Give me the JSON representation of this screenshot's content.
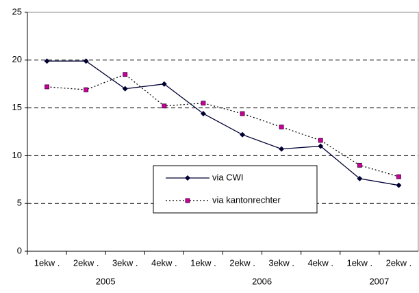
{
  "chart_data": {
    "type": "line",
    "categories": [
      "1ekw .",
      "2ekw .",
      "3ekw .",
      "4ekw .",
      "1ekw .",
      "2ekw .",
      "3ekw .",
      "4ekw .",
      "1ekw .",
      "2ekw ."
    ],
    "x_groups": [
      {
        "label": "2005",
        "count": 4
      },
      {
        "label": "2006",
        "count": 4
      },
      {
        "label": "2007",
        "count": 2
      }
    ],
    "series": [
      {
        "name": "via CWI",
        "color": "#000033",
        "marker_color": "#000033",
        "marker": "diamond",
        "dash": "solid",
        "values": [
          19.9,
          19.9,
          17.0,
          17.5,
          14.4,
          12.2,
          10.7,
          11.0,
          7.6,
          6.9
        ]
      },
      {
        "name": "via kantonrechter",
        "color": "#000000",
        "marker_color": "#cc0099",
        "marker": "square",
        "dash": "dotted",
        "values": [
          17.2,
          16.9,
          18.5,
          15.2,
          15.5,
          14.4,
          13.0,
          11.6,
          9.0,
          7.8
        ]
      }
    ],
    "ylim": [
      0,
      25
    ],
    "yticks": [
      0,
      5,
      10,
      15,
      20,
      25
    ],
    "grid": true,
    "legend": "lower-center"
  }
}
